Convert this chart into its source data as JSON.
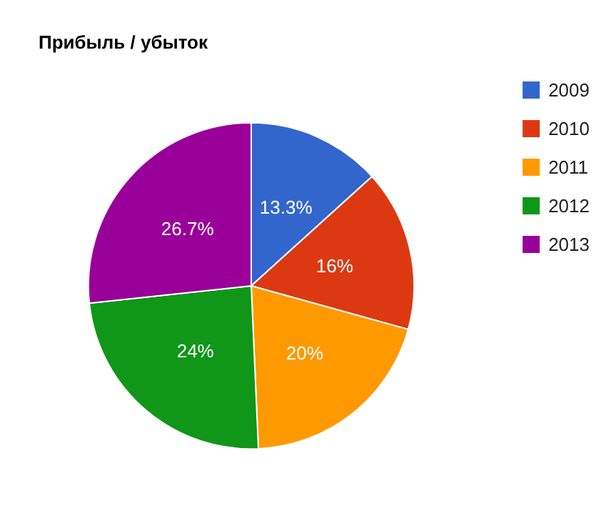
{
  "chart_data": {
    "type": "pie",
    "title": "Прибыль / убыток",
    "categories": [
      "2009",
      "2010",
      "2011",
      "2012",
      "2013"
    ],
    "values": [
      13.3,
      16,
      20,
      24,
      26.7
    ],
    "value_labels": [
      "13.3%",
      "16%",
      "20%",
      "24%",
      "26.7%"
    ],
    "colors": [
      "#3366cc",
      "#dc3912",
      "#ff9900",
      "#109618",
      "#990099"
    ],
    "legend": "top right"
  }
}
